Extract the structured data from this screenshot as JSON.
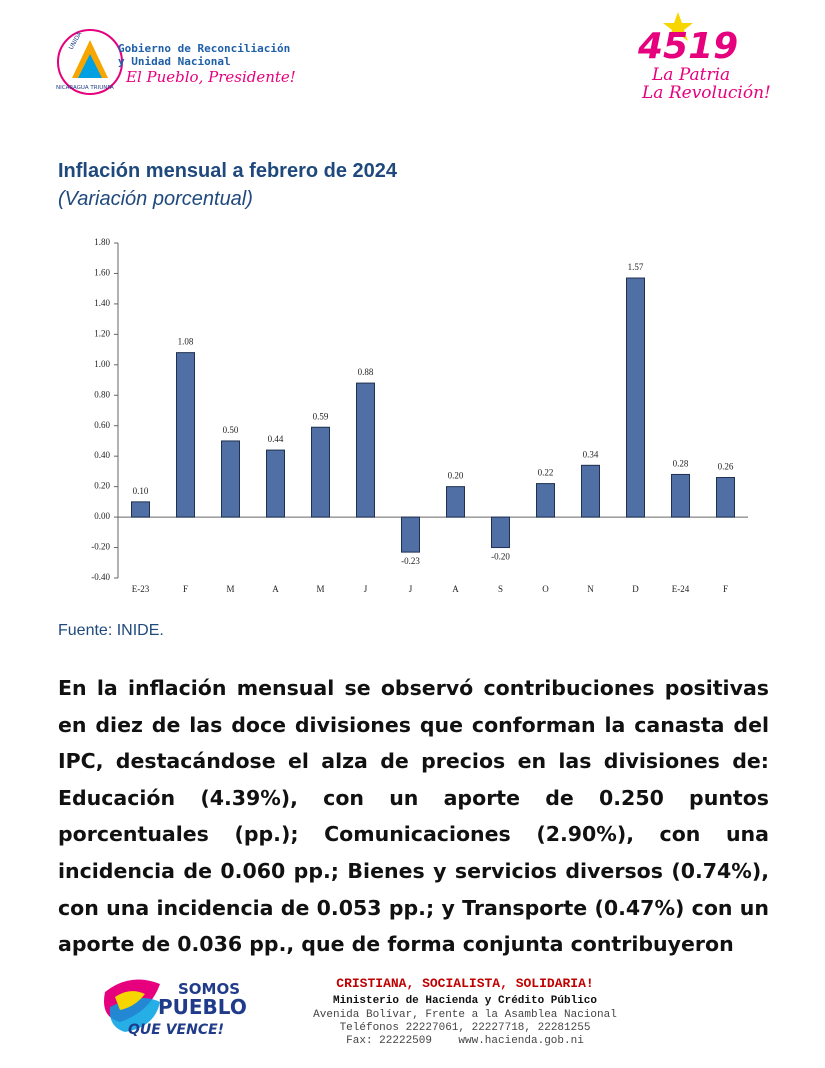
{
  "header": {
    "gov_line1": "Gobierno de Reconciliación",
    "gov_line2": "y Unidad Nacional",
    "slogan": "El Pueblo, Presidente!",
    "badge_top": "UNIDA",
    "badge_bottom": "NICARAGUA TRIUNFA",
    "anniv": "4519",
    "anniv_line1": "La Patria",
    "anniv_line2": "La Revolución!"
  },
  "chart_data": {
    "type": "bar",
    "title": "Inflación mensual a febrero de 2024",
    "subtitle": "(Variación porcentual)",
    "categories": [
      "E-23",
      "F",
      "M",
      "A",
      "M",
      "J",
      "J",
      "A",
      "S",
      "O",
      "N",
      "D",
      "E-24",
      "F"
    ],
    "values": [
      0.1,
      1.08,
      0.5,
      0.44,
      0.59,
      0.88,
      -0.23,
      0.2,
      -0.2,
      0.22,
      0.34,
      1.57,
      0.28,
      0.26
    ],
    "value_labels": [
      "0.10",
      "1.08",
      "0.50",
      "0.44",
      "0.59",
      "0.88",
      "-0.23",
      "0.20",
      "-0.20",
      "0.22",
      "0.34",
      "1.57",
      "0.28",
      "0.26"
    ],
    "color": "#4f6fa5",
    "ylim": [
      -0.4,
      1.8
    ],
    "yticks": [
      {
        "value": -0.4,
        "label": "-0.40"
      },
      {
        "value": -0.2,
        "label": "-0.20"
      },
      {
        "value": 0,
        "label": "0.00"
      },
      {
        "value": 0.2,
        "label": "0.20"
      },
      {
        "value": 0.4,
        "label": "0.40"
      },
      {
        "value": 0.6,
        "label": "0.60"
      },
      {
        "value": 0.8,
        "label": "0.80"
      },
      {
        "value": 1,
        "label": "1.00"
      },
      {
        "value": 1.2,
        "label": "1.20"
      },
      {
        "value": 1.4,
        "label": "1.40"
      },
      {
        "value": 1.6,
        "label": "1.60"
      },
      {
        "value": 1.8,
        "label": "1.80"
      }
    ],
    "grid": false,
    "source": "Fuente: INIDE."
  },
  "body": {
    "paragraph": "En la inflación mensual se observó contribuciones positivas en diez de las doce divisiones que conforman la canasta del IPC, destacándose el alza de precios en las divisiones de: Educación (4.39%), con un aporte de 0.250 puntos porcentuales (pp.); Comunicaciones (2.90%), con una incidencia de 0.060 pp.; Bienes y servicios diversos (0.74%), con una incidencia de 0.053 pp.; y Transporte (0.47%) con un aporte de 0.036 pp., que de forma conjunta contribuyeron"
  },
  "footer": {
    "logo_line1": "SOMOS",
    "logo_line2": "PUEBLO",
    "logo_line3": "QUE VENCE!",
    "motto": "CRISTIANA, SOCIALISTA, SOLIDARIA!",
    "ministry": "Ministerio de Hacienda y Crédito Público",
    "address": "Avenida Bolívar, Frente a la Asamblea Nacional",
    "phones": "Teléfonos 22227061, 22227718, 22281255",
    "fax_web": "Fax: 22222509    www.hacienda.gob.ni"
  }
}
